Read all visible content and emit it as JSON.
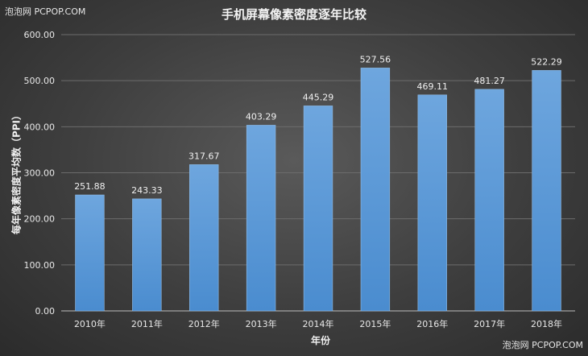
{
  "watermark_top": "泡泡网 PCPOP.COM",
  "watermark_bottom": "泡泡网 PCPOP.COM",
  "chart_data": {
    "type": "bar",
    "title": "手机屏幕像素密度逐年比较",
    "xlabel": "年份",
    "ylabel": "每年像素密度平均数（PPI）",
    "categories": [
      "2010年",
      "2011年",
      "2012年",
      "2013年",
      "2014年",
      "2015年",
      "2016年",
      "2017年",
      "2018年"
    ],
    "values": [
      251.88,
      243.33,
      317.67,
      403.29,
      445.29,
      527.56,
      469.11,
      481.27,
      522.29
    ],
    "value_labels": [
      "251.88",
      "243.33",
      "317.67",
      "403.29",
      "445.29",
      "527.56",
      "469.11",
      "481.27",
      "522.29"
    ],
    "ylim": [
      0,
      600
    ],
    "yticks": [
      "0.00",
      "100.00",
      "200.00",
      "300.00",
      "400.00",
      "500.00",
      "600.00"
    ],
    "grid": true,
    "legend": "none",
    "bar_color": "#5b9bd5"
  }
}
